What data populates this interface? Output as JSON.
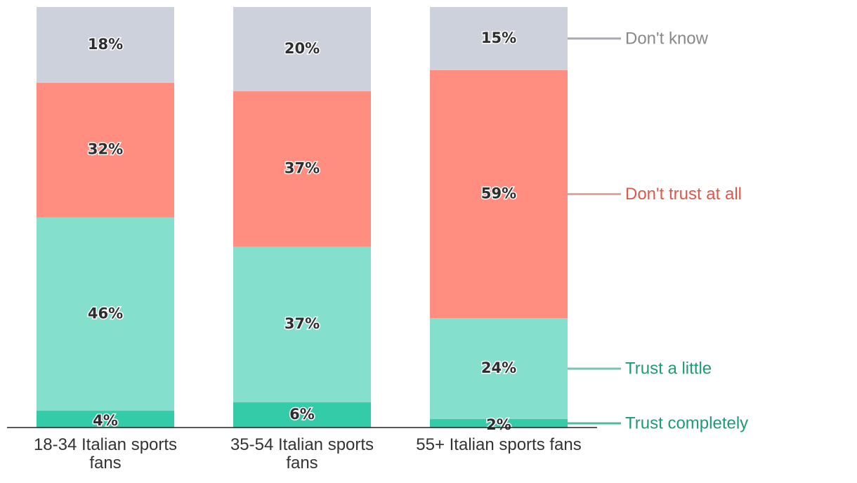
{
  "chart_data": {
    "type": "bar",
    "stacked": true,
    "categories": [
      [
        "18-34 Italian sports",
        "fans"
      ],
      [
        "35-54 Italian sports",
        "fans"
      ],
      [
        "55+ Italian sports fans"
      ]
    ],
    "series": [
      {
        "name": "Trust completely",
        "values": [
          4,
          6,
          2
        ],
        "labels": [
          "4%",
          "6%",
          "2%"
        ],
        "color": "#33cba8",
        "legend_color": "#1d9a76",
        "line_color": "#52b8a0"
      },
      {
        "name": "Trust a little",
        "values": [
          46,
          37,
          24
        ],
        "labels": [
          "46%",
          "37%",
          "24%"
        ],
        "color": "#84e0cc",
        "legend_color": "#1d9a76",
        "line_color": "#7cc3b3"
      },
      {
        "name": "Don't trust at all",
        "values": [
          32,
          37,
          59
        ],
        "labels": [
          "32%",
          "37%",
          "59%"
        ],
        "color": "#ff8d80",
        "legend_color": "#d9594d",
        "line_color": "#e8a29a"
      },
      {
        "name": "Don't know",
        "values": [
          18,
          20,
          15
        ],
        "labels": [
          "18%",
          "20%",
          "15%"
        ],
        "color": "#cdd1dc",
        "legend_color": "#888888",
        "line_color": "#a9a9b3"
      }
    ],
    "ylim": [
      0,
      100
    ],
    "legend_position": "right"
  }
}
